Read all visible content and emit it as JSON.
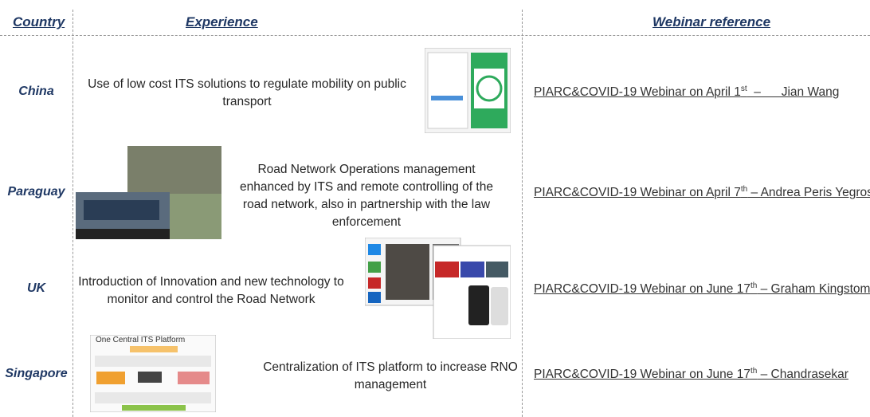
{
  "header": {
    "country": "Country",
    "experience": "Experience",
    "webinar": "Webinar reference"
  },
  "rows": [
    {
      "country": "China",
      "experience": "Use of low cost ITS solutions to regulate mobility on public transport",
      "webinar": {
        "before": "PIARC&COVID-19 Webinar on April 1",
        "sup": "st",
        "after": "  –      Jian Wang"
      }
    },
    {
      "country": "Paraguay",
      "experience": "Road Network Operations management enhanced by ITS and remote controlling of the road network, also in partnership with the law enforcement",
      "webinar": {
        "before": "PIARC&COVID-19 Webinar on April 7",
        "sup": "th",
        "after": " – Andrea Peris Yegros"
      }
    },
    {
      "country": "UK",
      "experience": "Introduction of Innovation and new technology to monitor and control the Road Network",
      "webinar": {
        "before": "PIARC&COVID-19 Webinar on June 17",
        "sup": "th",
        "after": " – Graham Kingstom"
      }
    },
    {
      "country": "Singapore",
      "experience": "Centralization of ITS platform to increase RNO management",
      "webinar": {
        "before": "PIARC&COVID-19 Webinar on June 17",
        "sup": "th",
        "after": " – Chandrasekar"
      },
      "image_caption": "One Central ITS Platform"
    }
  ]
}
